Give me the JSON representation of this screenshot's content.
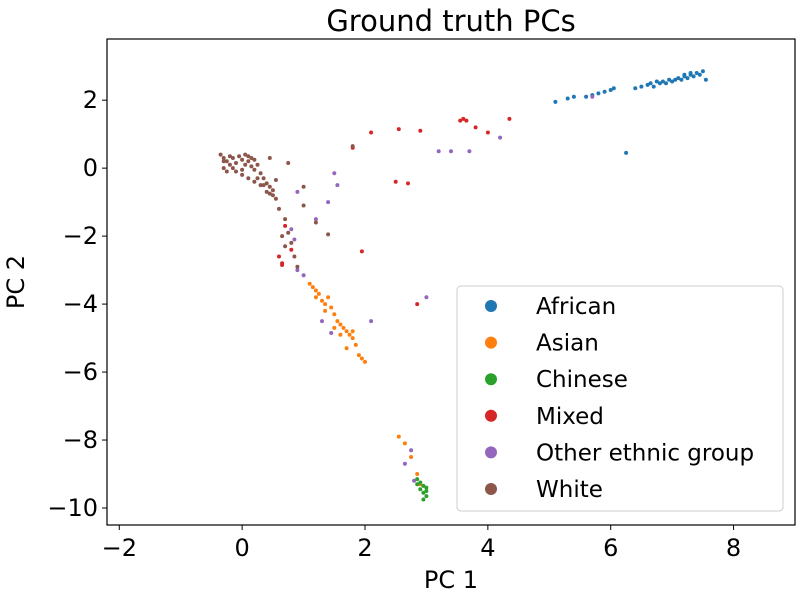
{
  "chart_data": {
    "type": "scatter",
    "title": "Ground truth PCs",
    "xlabel": "PC 1",
    "ylabel": "PC 2",
    "xlim": [
      -2.2,
      9.0
    ],
    "ylim": [
      -10.5,
      3.8
    ],
    "xticks": [
      -2,
      0,
      2,
      4,
      6,
      8
    ],
    "xtick_labels": [
      "−2",
      "0",
      "2",
      "4",
      "6",
      "8"
    ],
    "yticks": [
      2,
      0,
      -2,
      -4,
      -6,
      -8,
      -10
    ],
    "ytick_labels": [
      "2",
      "0",
      "−2",
      "−4",
      "−6",
      "−8",
      "−10"
    ],
    "grid": false,
    "legend_position": "lower-right",
    "series": [
      {
        "name": "African",
        "color": "#1f77b4",
        "points": [
          [
            5.1,
            1.95
          ],
          [
            5.3,
            2.05
          ],
          [
            5.4,
            2.1
          ],
          [
            5.6,
            2.1
          ],
          [
            5.7,
            2.15
          ],
          [
            5.8,
            2.2
          ],
          [
            5.9,
            2.25
          ],
          [
            6.0,
            2.3
          ],
          [
            6.05,
            2.35
          ],
          [
            6.25,
            0.45
          ],
          [
            6.4,
            2.35
          ],
          [
            6.5,
            2.4
          ],
          [
            6.6,
            2.45
          ],
          [
            6.65,
            2.5
          ],
          [
            6.7,
            2.4
          ],
          [
            6.75,
            2.55
          ],
          [
            6.8,
            2.5
          ],
          [
            6.85,
            2.55
          ],
          [
            6.9,
            2.5
          ],
          [
            6.95,
            2.6
          ],
          [
            7.0,
            2.55
          ],
          [
            7.05,
            2.6
          ],
          [
            7.1,
            2.65
          ],
          [
            7.15,
            2.6
          ],
          [
            7.2,
            2.7
          ],
          [
            7.25,
            2.65
          ],
          [
            7.3,
            2.75
          ],
          [
            7.35,
            2.7
          ],
          [
            7.4,
            2.8
          ],
          [
            7.45,
            2.75
          ],
          [
            7.5,
            2.85
          ],
          [
            7.55,
            2.6
          ],
          [
            7.2,
            2.75
          ],
          [
            7.3,
            2.8
          ]
        ]
      },
      {
        "name": "Asian",
        "color": "#ff7f0e",
        "points": [
          [
            1.1,
            -3.4
          ],
          [
            1.15,
            -3.5
          ],
          [
            1.2,
            -3.6
          ],
          [
            1.2,
            -3.8
          ],
          [
            1.25,
            -3.7
          ],
          [
            1.3,
            -3.9
          ],
          [
            1.35,
            -4.0
          ],
          [
            1.4,
            -3.8
          ],
          [
            1.35,
            -4.2
          ],
          [
            1.45,
            -4.1
          ],
          [
            1.5,
            -4.3
          ],
          [
            1.55,
            -4.5
          ],
          [
            1.6,
            -4.6
          ],
          [
            1.65,
            -4.7
          ],
          [
            1.7,
            -4.8
          ],
          [
            1.75,
            -4.9
          ],
          [
            1.8,
            -5.0
          ],
          [
            1.85,
            -5.2
          ],
          [
            1.7,
            -5.3
          ],
          [
            1.9,
            -5.5
          ],
          [
            1.95,
            -5.6
          ],
          [
            2.0,
            -5.7
          ],
          [
            1.6,
            -4.9
          ],
          [
            1.8,
            -4.8
          ],
          [
            1.5,
            -4.7
          ],
          [
            2.55,
            -7.9
          ],
          [
            2.65,
            -8.1
          ],
          [
            2.75,
            -8.5
          ],
          [
            2.85,
            -9.0
          ],
          [
            2.9,
            -9.3
          ]
        ]
      },
      {
        "name": "Chinese",
        "color": "#2ca02c",
        "points": [
          [
            2.85,
            -9.15
          ],
          [
            2.9,
            -9.25
          ],
          [
            2.95,
            -9.35
          ],
          [
            2.9,
            -9.45
          ],
          [
            2.95,
            -9.55
          ],
          [
            3.0,
            -9.65
          ],
          [
            2.95,
            -9.75
          ],
          [
            3.0,
            -9.4
          ],
          [
            2.85,
            -9.3
          ],
          [
            3.0,
            -9.5
          ]
        ]
      },
      {
        "name": "Mixed",
        "color": "#d62728",
        "points": [
          [
            1.8,
            0.6
          ],
          [
            2.1,
            1.05
          ],
          [
            2.55,
            1.15
          ],
          [
            2.9,
            1.1
          ],
          [
            3.55,
            1.4
          ],
          [
            3.6,
            1.45
          ],
          [
            3.65,
            1.4
          ],
          [
            3.8,
            1.2
          ],
          [
            4.0,
            1.05
          ],
          [
            4.35,
            1.45
          ],
          [
            2.5,
            -0.4
          ],
          [
            2.7,
            -0.45
          ],
          [
            0.7,
            -1.7
          ],
          [
            0.6,
            -2.6
          ],
          [
            0.65,
            -2.8
          ],
          [
            0.8,
            -2.4
          ],
          [
            1.95,
            -2.45
          ],
          [
            2.85,
            -4.0
          ],
          [
            0.65,
            -2.85
          ]
        ]
      },
      {
        "name": "Other ethnic group",
        "color": "#9467bd",
        "points": [
          [
            3.2,
            0.5
          ],
          [
            3.4,
            0.5
          ],
          [
            3.7,
            0.5
          ],
          [
            4.2,
            0.9
          ],
          [
            5.7,
            2.1
          ],
          [
            1.5,
            -0.15
          ],
          [
            1.55,
            -0.5
          ],
          [
            1.4,
            -1.0
          ],
          [
            1.2,
            -1.5
          ],
          [
            0.9,
            -0.7
          ],
          [
            0.8,
            -1.8
          ],
          [
            0.85,
            -2.1
          ],
          [
            0.9,
            -3.0
          ],
          [
            1.0,
            -3.15
          ],
          [
            1.3,
            -4.5
          ],
          [
            1.45,
            -4.85
          ],
          [
            2.1,
            -4.5
          ],
          [
            3.0,
            -3.8
          ],
          [
            2.75,
            -8.3
          ],
          [
            2.65,
            -8.7
          ],
          [
            2.8,
            -9.2
          ]
        ]
      },
      {
        "name": "White",
        "color": "#8c564b",
        "points": [
          [
            -0.35,
            0.4
          ],
          [
            -0.3,
            0.3
          ],
          [
            -0.25,
            0.2
          ],
          [
            -0.2,
            0.1
          ],
          [
            -0.15,
            0.0
          ],
          [
            -0.1,
            0.15
          ],
          [
            -0.05,
            0.35
          ],
          [
            0.0,
            0.25
          ],
          [
            0.05,
            0.1
          ],
          [
            0.1,
            0.2
          ],
          [
            0.15,
            0.05
          ],
          [
            0.2,
            -0.05
          ],
          [
            -0.3,
            0.0
          ],
          [
            -0.25,
            -0.1
          ],
          [
            -0.2,
            0.35
          ],
          [
            0.05,
            0.4
          ],
          [
            0.1,
            0.35
          ],
          [
            0.2,
            0.25
          ],
          [
            0.25,
            0.1
          ],
          [
            0.3,
            -0.15
          ],
          [
            0.35,
            -0.3
          ],
          [
            0.4,
            -0.45
          ],
          [
            0.45,
            -0.55
          ],
          [
            0.5,
            -0.65
          ],
          [
            0.4,
            -0.7
          ],
          [
            0.5,
            -0.8
          ],
          [
            0.3,
            -0.5
          ],
          [
            0.2,
            -0.4
          ],
          [
            0.1,
            -0.3
          ],
          [
            0.0,
            -0.2
          ],
          [
            -0.1,
            -0.1
          ],
          [
            0.0,
            -0.05
          ],
          [
            -0.15,
            0.3
          ],
          [
            -0.3,
            0.2
          ],
          [
            0.15,
            0.3
          ],
          [
            0.25,
            -0.3
          ],
          [
            0.35,
            -0.5
          ],
          [
            0.45,
            -0.75
          ],
          [
            0.55,
            -0.9
          ],
          [
            0.6,
            -1.2
          ],
          [
            0.7,
            -1.5
          ],
          [
            0.75,
            -1.9
          ],
          [
            0.8,
            -2.2
          ],
          [
            0.85,
            -2.6
          ],
          [
            0.7,
            -2.3
          ],
          [
            0.65,
            -2.0
          ],
          [
            0.9,
            -2.9
          ],
          [
            0.55,
            -0.35
          ],
          [
            0.45,
            0.3
          ],
          [
            0.75,
            0.15
          ],
          [
            1.0,
            -0.55
          ],
          [
            1.0,
            -1.1
          ],
          [
            1.2,
            -1.6
          ],
          [
            1.4,
            -1.95
          ],
          [
            1.8,
            0.65
          ]
        ]
      }
    ]
  }
}
